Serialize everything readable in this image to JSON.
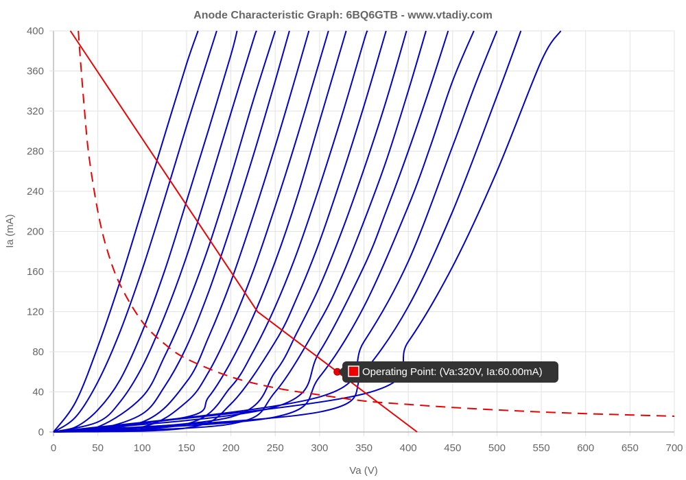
{
  "chart_data": {
    "type": "line",
    "title": "Anode Characteristic Graph: 6BQ6GTB - www.vtadiy.com",
    "xlabel": "Va (V)",
    "ylabel": "Ia (mA)",
    "xlim": [
      0,
      700
    ],
    "ylim": [
      0,
      400
    ],
    "x_ticks": [
      0,
      50,
      100,
      150,
      200,
      250,
      300,
      350,
      400,
      450,
      500,
      550,
      600,
      650,
      700
    ],
    "y_ticks": [
      0,
      40,
      80,
      120,
      160,
      200,
      240,
      280,
      320,
      360,
      400
    ],
    "grid": true,
    "legend": "none",
    "curve_color": "#0000cc",
    "load_line_color": "#ee0000",
    "curves": [
      {
        "values": [
          [
            0,
            0
          ],
          [
            25,
            30
          ],
          [
            50,
            85
          ],
          [
            75,
            150
          ],
          [
            100,
            222
          ],
          [
            125,
            295
          ],
          [
            150,
            367
          ],
          [
            163,
            400
          ]
        ]
      },
      {
        "values": [
          [
            0,
            0
          ],
          [
            25,
            15
          ],
          [
            50,
            50
          ],
          [
            75,
            100
          ],
          [
            100,
            162
          ],
          [
            125,
            232
          ],
          [
            150,
            305
          ],
          [
            175,
            375
          ],
          [
            184,
            400
          ]
        ]
      },
      {
        "values": [
          [
            0,
            0
          ],
          [
            25,
            5
          ],
          [
            50,
            22
          ],
          [
            75,
            52
          ],
          [
            100,
            100
          ],
          [
            125,
            160
          ],
          [
            150,
            230
          ],
          [
            175,
            302
          ],
          [
            200,
            376
          ],
          [
            207,
            400
          ]
        ]
      },
      {
        "values": [
          [
            0,
            0
          ],
          [
            50,
            10
          ],
          [
            75,
            30
          ],
          [
            100,
            65
          ],
          [
            125,
            115
          ],
          [
            150,
            175
          ],
          [
            175,
            245
          ],
          [
            200,
            318
          ],
          [
            225,
            390
          ],
          [
            229,
            400
          ]
        ]
      },
      {
        "values": [
          [
            0,
            0
          ],
          [
            50,
            5
          ],
          [
            100,
            35
          ],
          [
            125,
            75
          ],
          [
            150,
            125
          ],
          [
            175,
            185
          ],
          [
            200,
            255
          ],
          [
            225,
            330
          ],
          [
            250,
            400
          ]
        ]
      },
      {
        "values": [
          [
            0,
            0
          ],
          [
            50,
            3
          ],
          [
            100,
            18
          ],
          [
            125,
            45
          ],
          [
            150,
            85
          ],
          [
            175,
            140
          ],
          [
            200,
            205
          ],
          [
            225,
            275
          ],
          [
            250,
            350
          ],
          [
            266,
            400
          ]
        ]
      },
      {
        "values": [
          [
            0,
            0
          ],
          [
            100,
            10
          ],
          [
            150,
            50
          ],
          [
            175,
            95
          ],
          [
            200,
            150
          ],
          [
            225,
            215
          ],
          [
            250,
            285
          ],
          [
            275,
            360
          ],
          [
            288,
            400
          ]
        ]
      },
      {
        "values": [
          [
            0,
            0
          ],
          [
            100,
            5
          ],
          [
            150,
            30
          ],
          [
            175,
            60
          ],
          [
            200,
            105
          ],
          [
            225,
            160
          ],
          [
            250,
            225
          ],
          [
            275,
            295
          ],
          [
            300,
            370
          ],
          [
            310,
            400
          ]
        ]
      },
      {
        "values": [
          [
            0,
            0
          ],
          [
            150,
            15
          ],
          [
            175,
            35
          ],
          [
            200,
            70
          ],
          [
            225,
            115
          ],
          [
            250,
            170
          ],
          [
            275,
            235
          ],
          [
            300,
            310
          ],
          [
            325,
            385
          ],
          [
            330,
            400
          ]
        ]
      },
      {
        "values": [
          [
            0,
            0
          ],
          [
            150,
            8
          ],
          [
            200,
            45
          ],
          [
            225,
            80
          ],
          [
            250,
            125
          ],
          [
            275,
            180
          ],
          [
            300,
            245
          ],
          [
            325,
            315
          ],
          [
            350,
            390
          ],
          [
            354,
            400
          ]
        ]
      },
      {
        "values": [
          [
            0,
            0
          ],
          [
            150,
            4
          ],
          [
            200,
            28
          ],
          [
            250,
            90
          ],
          [
            275,
            135
          ],
          [
            300,
            190
          ],
          [
            325,
            255
          ],
          [
            350,
            325
          ],
          [
            375,
            400
          ]
        ]
      },
      {
        "values": [
          [
            0,
            0
          ],
          [
            200,
            15
          ],
          [
            250,
            60
          ],
          [
            275,
            100
          ],
          [
            300,
            145
          ],
          [
            325,
            200
          ],
          [
            350,
            262
          ],
          [
            375,
            330
          ],
          [
            398,
            400
          ]
        ]
      },
      {
        "values": [
          [
            0,
            0
          ],
          [
            200,
            8
          ],
          [
            250,
            40
          ],
          [
            300,
            110
          ],
          [
            325,
            155
          ],
          [
            350,
            210
          ],
          [
            375,
            270
          ],
          [
            400,
            340
          ],
          [
            420,
            400
          ]
        ]
      },
      {
        "values": [
          [
            0,
            0
          ],
          [
            250,
            25
          ],
          [
            300,
            80
          ],
          [
            350,
            165
          ],
          [
            375,
            220
          ],
          [
            400,
            280
          ],
          [
            425,
            345
          ],
          [
            445,
            400
          ]
        ]
      },
      {
        "values": [
          [
            0,
            0
          ],
          [
            250,
            15
          ],
          [
            300,
            55
          ],
          [
            350,
            125
          ],
          [
            400,
            225
          ],
          [
            425,
            285
          ],
          [
            450,
            350
          ],
          [
            474,
            400
          ]
        ]
      },
      {
        "values": [
          [
            0,
            0
          ],
          [
            300,
            35
          ],
          [
            350,
            90
          ],
          [
            400,
            170
          ],
          [
            450,
            285
          ],
          [
            475,
            345
          ],
          [
            500,
            400
          ]
        ]
      },
      {
        "values": [
          [
            0,
            0
          ],
          [
            300,
            20
          ],
          [
            350,
            60
          ],
          [
            400,
            125
          ],
          [
            450,
            220
          ],
          [
            500,
            335
          ],
          [
            527,
            400
          ]
        ]
      },
      {
        "values": [
          [
            0,
            0
          ],
          [
            350,
            38
          ],
          [
            400,
            90
          ],
          [
            450,
            165
          ],
          [
            500,
            260
          ],
          [
            550,
            370
          ],
          [
            572,
            400
          ]
        ]
      }
    ],
    "load_line": [
      [
        19,
        400
      ],
      [
        230,
        120
      ],
      [
        410,
        0
      ]
    ],
    "power_limit_curve": [
      [
        28,
        400
      ],
      [
        30,
        375
      ],
      [
        35,
        320
      ],
      [
        40,
        275
      ],
      [
        50,
        220
      ],
      [
        60,
        183
      ],
      [
        75,
        147
      ],
      [
        100,
        110
      ],
      [
        125,
        88
      ],
      [
        150,
        73
      ],
      [
        200,
        55
      ],
      [
        250,
        44
      ],
      [
        300,
        37
      ],
      [
        350,
        31
      ],
      [
        400,
        27.5
      ],
      [
        450,
        24.5
      ],
      [
        500,
        22
      ],
      [
        550,
        20
      ],
      [
        600,
        18.3
      ],
      [
        650,
        17
      ],
      [
        700,
        15.7
      ]
    ],
    "operating_point": {
      "va": 320,
      "ia": 60
    },
    "tooltip": "Operating Point: (Va:320V, Ia:60.00mA)"
  }
}
